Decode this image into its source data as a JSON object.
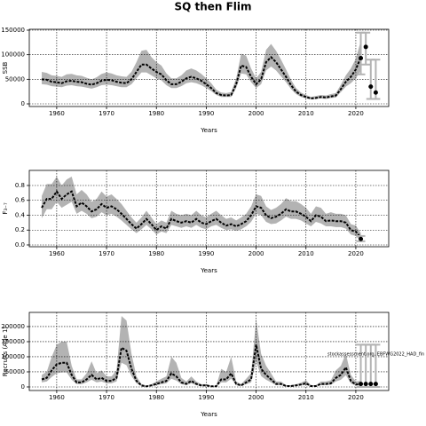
{
  "chart_data": [
    {
      "type": "line",
      "title": "SQ then Flim",
      "ylabel": "SSB",
      "xlabel": "Years",
      "x": [
        1957,
        1958,
        1959,
        1960,
        1961,
        1962,
        1963,
        1964,
        1965,
        1966,
        1967,
        1968,
        1969,
        1970,
        1971,
        1972,
        1973,
        1974,
        1975,
        1976,
        1977,
        1978,
        1979,
        1980,
        1981,
        1982,
        1983,
        1984,
        1985,
        1986,
        1987,
        1988,
        1989,
        1990,
        1991,
        1992,
        1993,
        1994,
        1995,
        1996,
        1997,
        1998,
        1999,
        2000,
        2001,
        2002,
        2003,
        2004,
        2005,
        2006,
        2007,
        2008,
        2009,
        2010,
        2011,
        2012,
        2013,
        2014,
        2015,
        2016,
        2017,
        2018,
        2019,
        2020,
        2021
      ],
      "series": [
        {
          "color": "#000000",
          "band_color": "#b3b3b3",
          "values": [
            50000,
            49000,
            45000,
            44000,
            42000,
            46000,
            47000,
            45000,
            44000,
            41000,
            39000,
            42000,
            47000,
            49000,
            48000,
            45000,
            43000,
            42000,
            50000,
            65000,
            80000,
            80000,
            72000,
            65000,
            60000,
            48000,
            40000,
            40000,
            45000,
            52000,
            55000,
            52000,
            47000,
            40000,
            32000,
            22000,
            18000,
            17000,
            18000,
            40000,
            78000,
            75000,
            55000,
            40000,
            50000,
            85000,
            95000,
            85000,
            70000,
            55000,
            38000,
            25000,
            18000,
            14000,
            11000,
            12000,
            14000,
            13000,
            15000,
            17000,
            30000,
            45000,
            55000,
            70000,
            95000
          ],
          "lower": [
            40000,
            39000,
            36000,
            35000,
            34000,
            37000,
            38000,
            36000,
            35000,
            33000,
            31000,
            34000,
            38000,
            39000,
            38000,
            36000,
            34000,
            34000,
            40000,
            52000,
            64000,
            64000,
            58000,
            52000,
            48000,
            38000,
            32000,
            32000,
            36000,
            42000,
            44000,
            42000,
            38000,
            32000,
            26000,
            18000,
            14000,
            14000,
            14000,
            32000,
            62000,
            60000,
            44000,
            32000,
            40000,
            68000,
            76000,
            68000,
            56000,
            44000,
            30000,
            20000,
            14000,
            11000,
            9000,
            10000,
            11000,
            10000,
            12000,
            13000,
            24000,
            35000,
            42000,
            52000,
            68000
          ],
          "upper": [
            65000,
            63000,
            58000,
            57000,
            55000,
            60000,
            61000,
            58000,
            57000,
            53000,
            50000,
            54000,
            61000,
            64000,
            62000,
            58000,
            56000,
            55000,
            65000,
            85000,
            108000,
            110000,
            95000,
            85000,
            78000,
            62000,
            52000,
            52000,
            58000,
            68000,
            72000,
            68000,
            61000,
            52000,
            42000,
            29000,
            23000,
            22000,
            24000,
            52000,
            102000,
            98000,
            72000,
            52000,
            65000,
            110000,
            122000,
            108000,
            90000,
            70000,
            49000,
            32000,
            23000,
            18000,
            14000,
            16000,
            18000,
            17000,
            20000,
            22000,
            39000,
            58000,
            72000,
            92000,
            128000
          ]
        }
      ],
      "points": {
        "color": "#000000",
        "bar_color": "#b3b3b3",
        "x": [
          2021,
          2022,
          2023,
          2024
        ],
        "values": [
          93000,
          116000,
          35000,
          23000
        ],
        "lower": [
          60000,
          80000,
          10000,
          10000
        ],
        "upper": [
          145000,
          145000,
          90000,
          90000
        ]
      },
      "xlim": [
        1954.5,
        2026.6
      ],
      "xticks": [
        1960,
        1970,
        1980,
        1990,
        2000,
        2010,
        2020
      ],
      "ylim": [
        -5400,
        151800
      ],
      "yticks": [
        0,
        50000,
        100000,
        150000
      ],
      "grid": true
    },
    {
      "type": "line",
      "ylabel": "F₃₋₇",
      "xlabel": "Years",
      "x": [
        1957,
        1958,
        1959,
        1960,
        1961,
        1962,
        1963,
        1964,
        1965,
        1966,
        1967,
        1968,
        1969,
        1970,
        1971,
        1972,
        1973,
        1974,
        1975,
        1976,
        1977,
        1978,
        1979,
        1980,
        1981,
        1982,
        1983,
        1984,
        1985,
        1986,
        1987,
        1988,
        1989,
        1990,
        1991,
        1992,
        1993,
        1994,
        1995,
        1996,
        1997,
        1998,
        1999,
        2000,
        2001,
        2002,
        2003,
        2004,
        2005,
        2006,
        2007,
        2008,
        2009,
        2010,
        2011,
        2012,
        2013,
        2014,
        2015,
        2016,
        2017,
        2018,
        2019,
        2020,
        2021
      ],
      "series": [
        {
          "color": "#000000",
          "band_color": "#b3b3b3",
          "values": [
            0.5,
            0.62,
            0.62,
            0.72,
            0.62,
            0.68,
            0.72,
            0.52,
            0.57,
            0.52,
            0.45,
            0.48,
            0.55,
            0.5,
            0.52,
            0.48,
            0.42,
            0.35,
            0.28,
            0.22,
            0.28,
            0.35,
            0.28,
            0.2,
            0.25,
            0.22,
            0.35,
            0.32,
            0.3,
            0.32,
            0.3,
            0.35,
            0.3,
            0.28,
            0.32,
            0.35,
            0.3,
            0.26,
            0.28,
            0.25,
            0.28,
            0.32,
            0.4,
            0.52,
            0.5,
            0.4,
            0.36,
            0.38,
            0.42,
            0.48,
            0.45,
            0.45,
            0.42,
            0.38,
            0.32,
            0.4,
            0.38,
            0.32,
            0.33,
            0.32,
            0.32,
            0.3,
            0.2,
            0.18,
            0.1
          ],
          "lower": [
            0.36,
            0.48,
            0.48,
            0.58,
            0.5,
            0.54,
            0.58,
            0.42,
            0.46,
            0.42,
            0.36,
            0.38,
            0.44,
            0.4,
            0.42,
            0.38,
            0.33,
            0.27,
            0.21,
            0.16,
            0.21,
            0.27,
            0.21,
            0.14,
            0.18,
            0.16,
            0.27,
            0.25,
            0.23,
            0.25,
            0.23,
            0.27,
            0.23,
            0.21,
            0.25,
            0.27,
            0.23,
            0.2,
            0.21,
            0.19,
            0.21,
            0.25,
            0.31,
            0.42,
            0.4,
            0.31,
            0.28,
            0.29,
            0.33,
            0.38,
            0.35,
            0.35,
            0.33,
            0.29,
            0.25,
            0.31,
            0.29,
            0.25,
            0.25,
            0.24,
            0.24,
            0.22,
            0.14,
            0.12,
            0.05
          ],
          "upper": [
            0.66,
            0.82,
            0.82,
            0.92,
            0.8,
            0.88,
            0.92,
            0.68,
            0.74,
            0.68,
            0.58,
            0.62,
            0.72,
            0.65,
            0.68,
            0.62,
            0.55,
            0.46,
            0.37,
            0.3,
            0.37,
            0.46,
            0.37,
            0.28,
            0.33,
            0.3,
            0.46,
            0.42,
            0.4,
            0.42,
            0.4,
            0.46,
            0.4,
            0.37,
            0.42,
            0.46,
            0.4,
            0.35,
            0.37,
            0.33,
            0.37,
            0.42,
            0.52,
            0.68,
            0.66,
            0.52,
            0.47,
            0.5,
            0.55,
            0.63,
            0.59,
            0.59,
            0.55,
            0.5,
            0.42,
            0.52,
            0.5,
            0.42,
            0.44,
            0.42,
            0.42,
            0.4,
            0.28,
            0.26,
            0.16
          ]
        }
      ],
      "points": {
        "color": "#000000",
        "bar_color": "#b3b3b3",
        "x": [
          2021
        ],
        "values": [
          0.08
        ],
        "lower": [
          0.05
        ],
        "upper": [
          0.12
        ]
      },
      "xlim": [
        1954.5,
        2026.6
      ],
      "xticks": [
        1960,
        1970,
        1980,
        1990,
        2000,
        2010,
        2020
      ],
      "ylim": [
        -0.024,
        1.003
      ],
      "yticks": [
        {
          "value": 0,
          "label": "0.0"
        },
        0.2,
        0.4,
        0.6,
        0.8
      ],
      "grid": true
    },
    {
      "type": "line",
      "ylabel": "Recruits (Age 1)",
      "xlabel": "Years",
      "annotation": "stockassessment.org, EBFWG2022_HAD_fin",
      "x": [
        1957,
        1958,
        1959,
        1960,
        1961,
        1962,
        1963,
        1964,
        1965,
        1966,
        1967,
        1968,
        1969,
        1970,
        1971,
        1972,
        1973,
        1974,
        1975,
        1976,
        1977,
        1978,
        1979,
        1980,
        1981,
        1982,
        1983,
        1984,
        1985,
        1986,
        1987,
        1988,
        1989,
        1990,
        1991,
        1992,
        1993,
        1994,
        1995,
        1996,
        1997,
        1998,
        1999,
        2000,
        2001,
        2002,
        2003,
        2004,
        2005,
        2006,
        2007,
        2008,
        2009,
        2010,
        2011,
        2012,
        2013,
        2014,
        2015,
        2016,
        2017,
        2018,
        2019,
        2020,
        2021
      ],
      "series": [
        {
          "color": "#000000",
          "band_color": "#b3b3b3",
          "values": [
            25000,
            30000,
            55000,
            75000,
            80000,
            80000,
            40000,
            15000,
            15000,
            25000,
            40000,
            25000,
            30000,
            20000,
            20000,
            30000,
            130000,
            120000,
            60000,
            20000,
            5000,
            2000,
            5000,
            10000,
            15000,
            20000,
            45000,
            35000,
            15000,
            10000,
            20000,
            10000,
            5000,
            5000,
            2000,
            2000,
            25000,
            25000,
            45000,
            10000,
            5000,
            15000,
            25000,
            140000,
            60000,
            40000,
            25000,
            10000,
            10000,
            3000,
            3000,
            5000,
            8000,
            12000,
            3000,
            3000,
            10000,
            10000,
            12000,
            30000,
            40000,
            65000,
            20000,
            8000,
            10000
          ],
          "lower": [
            15000,
            18000,
            33000,
            45000,
            48000,
            48000,
            24000,
            9000,
            9000,
            15000,
            24000,
            15000,
            18000,
            12000,
            12000,
            18000,
            80000,
            72000,
            36000,
            12000,
            3000,
            1000,
            3000,
            6000,
            9000,
            12000,
            27000,
            21000,
            9000,
            6000,
            12000,
            6000,
            3000,
            3000,
            1000,
            1000,
            15000,
            15000,
            27000,
            6000,
            3000,
            9000,
            15000,
            85000,
            36000,
            24000,
            15000,
            6000,
            6000,
            2000,
            2000,
            3000,
            5000,
            7000,
            2000,
            2000,
            6000,
            6000,
            7000,
            18000,
            24000,
            39000,
            12000,
            4000,
            5000
          ],
          "upper": [
            40000,
            50000,
            100000,
            140000,
            150000,
            150000,
            70000,
            25000,
            25000,
            45000,
            85000,
            45000,
            55000,
            35000,
            35000,
            55000,
            235000,
            220000,
            110000,
            35000,
            9000,
            4000,
            9000,
            18000,
            27000,
            35000,
            100000,
            80000,
            30000,
            18000,
            35000,
            18000,
            9000,
            9000,
            4000,
            4000,
            60000,
            50000,
            100000,
            18000,
            9000,
            27000,
            45000,
            225000,
            110000,
            70000,
            45000,
            18000,
            18000,
            6000,
            6000,
            9000,
            14000,
            22000,
            6000,
            6000,
            18000,
            18000,
            22000,
            55000,
            70000,
            110000,
            40000,
            18000,
            20000
          ]
        }
      ],
      "points": {
        "color": "#000000",
        "bar_color": "#b3b3b3",
        "x": [
          2021,
          2022,
          2023,
          2024
        ],
        "values": [
          10000,
          10000,
          10000,
          10000
        ],
        "lower": [
          0,
          0,
          0,
          0
        ],
        "upper": [
          140000,
          140000,
          140000,
          140000
        ]
      },
      "xlim": [
        1954.5,
        2026.6
      ],
      "xticks": [
        1960,
        1970,
        1980,
        1990,
        2000,
        2010,
        2020
      ],
      "ylim": [
        -11800,
        247000
      ],
      "yticks": [
        0,
        50000,
        100000,
        150000,
        200000
      ],
      "grid": true
    }
  ]
}
